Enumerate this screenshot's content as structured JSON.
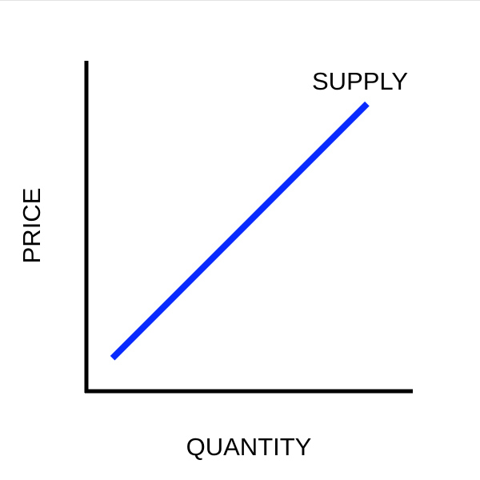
{
  "chart_data": {
    "type": "line",
    "xlabel": "QUANTITY",
    "ylabel": "PRICE",
    "series": [
      {
        "name": "SUPPLY",
        "x": [
          0.08,
          0.86
        ],
        "y": [
          0.1,
          0.87
        ]
      }
    ],
    "xlim": [
      0,
      1
    ],
    "ylim": [
      0,
      1
    ],
    "ticks": false,
    "grid": false,
    "line_color": "#0a2bff",
    "axis_color": "#000000"
  }
}
